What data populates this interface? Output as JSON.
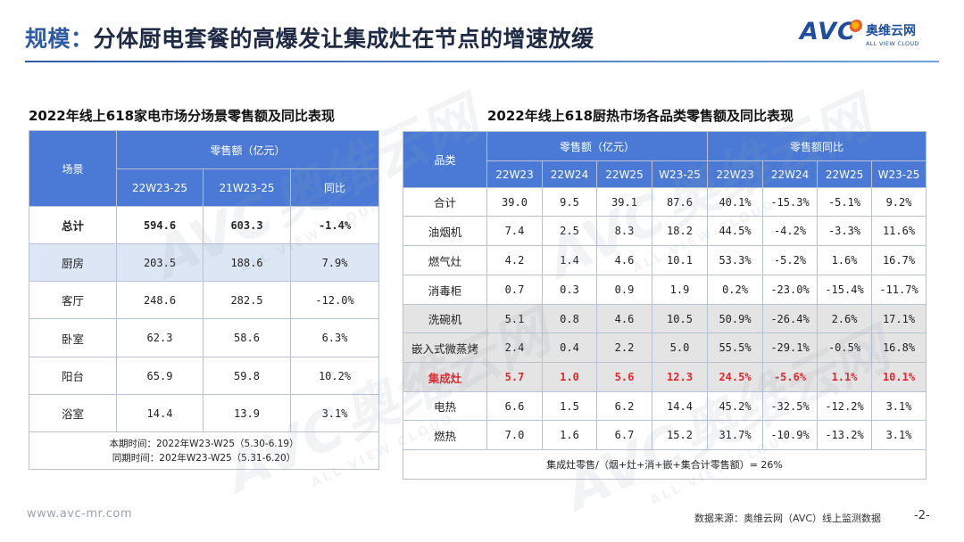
{
  "header": {
    "prefix": "规模：",
    "title": "分体厨电套餐的高爆发让集成灶在节点的增速放缓",
    "logo": {
      "mark": "AVC",
      "cn": "奥维云网",
      "en": "ALL VIEW CLOUD"
    }
  },
  "watermark": {
    "mark": "AVC",
    "cn": "奥维云网",
    "en": "ALL VIEW CLOUD"
  },
  "left_table": {
    "title": "2022年线上618家电市场分场景零售额及同比表现",
    "header": {
      "scene": "场景",
      "group": "零售额（亿元）",
      "col1": "22W23-25",
      "col2": "21W23-25",
      "col3": "同比"
    },
    "rows": [
      {
        "name": "总计",
        "v1": "594.6",
        "v2": "603.3",
        "v3": "-1.4%"
      },
      {
        "name": "厨房",
        "v1": "203.5",
        "v2": "188.6",
        "v3": "7.9%"
      },
      {
        "name": "客厅",
        "v1": "248.6",
        "v2": "282.5",
        "v3": "-12.0%"
      },
      {
        "name": "卧室",
        "v1": "62.3",
        "v2": "58.6",
        "v3": "6.3%"
      },
      {
        "name": "阳台",
        "v1": "65.9",
        "v2": "59.8",
        "v3": "10.2%"
      },
      {
        "name": "浴室",
        "v1": "14.4",
        "v2": "13.9",
        "v3": "3.1%"
      }
    ],
    "note1": "本期时间：2022年W23-W25（5.30-6.19）",
    "note2": "同期时间：202年W23-W25（5.31-6.20）"
  },
  "right_table": {
    "title": "2022年线上618厨热市场各品类零售额及同比表现",
    "header": {
      "category": "品类",
      "group1": "零售额（亿元）",
      "group2": "零售额同比",
      "cols": [
        "22W23",
        "22W24",
        "22W25",
        "W23-25",
        "22W23",
        "22W24",
        "22W25",
        "W23-25"
      ]
    },
    "rows": [
      {
        "name": "合计",
        "vals": [
          "39.0",
          "9.5",
          "39.1",
          "87.6",
          "40.1%",
          "-15.3%",
          "-5.1%",
          "9.2%"
        ]
      },
      {
        "name": "油烟机",
        "vals": [
          "7.4",
          "2.5",
          "8.3",
          "18.2",
          "44.5%",
          "-4.2%",
          "-3.3%",
          "11.6%"
        ]
      },
      {
        "name": "燃气灶",
        "vals": [
          "4.2",
          "1.4",
          "4.6",
          "10.1",
          "53.3%",
          "-5.2%",
          "1.6%",
          "16.7%"
        ]
      },
      {
        "name": "消毒柜",
        "vals": [
          "0.7",
          "0.3",
          "0.9",
          "1.9",
          "0.2%",
          "-23.0%",
          "-15.4%",
          "-11.7%"
        ]
      },
      {
        "name": "洗碗机",
        "vals": [
          "5.1",
          "0.8",
          "4.6",
          "10.5",
          "50.9%",
          "-26.4%",
          "2.6%",
          "17.1%"
        ]
      },
      {
        "name": "嵌入式微蒸烤",
        "vals": [
          "2.4",
          "0.4",
          "2.2",
          "5.0",
          "55.5%",
          "-29.1%",
          "-0.5%",
          "16.8%"
        ]
      },
      {
        "name": "集成灶",
        "vals": [
          "5.7",
          "1.0",
          "5.6",
          "12.3",
          "24.5%",
          "-5.6%",
          "1.1%",
          "10.1%"
        ]
      },
      {
        "name": "电热",
        "vals": [
          "6.6",
          "1.5",
          "6.2",
          "14.4",
          "45.2%",
          "-32.5%",
          "-12.2%",
          "3.1%"
        ]
      },
      {
        "name": "燃热",
        "vals": [
          "7.0",
          "1.6",
          "6.7",
          "15.2",
          "31.7%",
          "-10.9%",
          "-13.2%",
          "3.1%"
        ]
      }
    ],
    "footnote": "集成灶零售/（烟+灶+消+嵌+集合计零售额）= 26%"
  },
  "footer": {
    "site": "www.avc-mr.com",
    "source": "数据来源：奥维云网（AVC）线上监测数据",
    "page": "-2-"
  }
}
